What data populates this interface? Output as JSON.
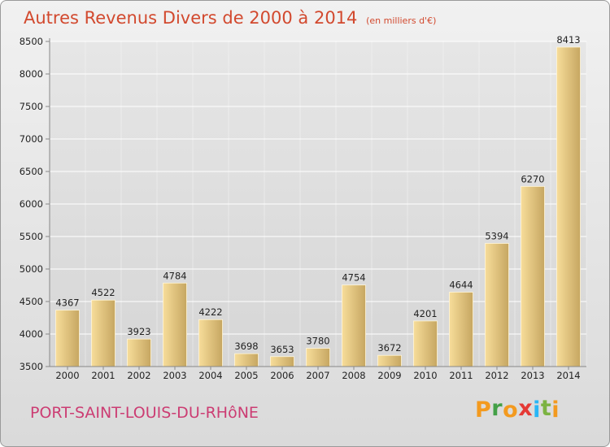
{
  "header": {
    "title": "Autres Revenus Divers de 2000 à 2014",
    "unit_note": "(en milliers d'€)"
  },
  "footer": {
    "place": "PORT-SAINT-LOUIS-DU-RHôNE",
    "logo_letters": [
      "P",
      "r",
      "o",
      "x",
      "i",
      "t",
      "i"
    ],
    "logo_colors": [
      "#f39a1f",
      "#43a047",
      "#f39a1f",
      "#e53935",
      "#29b6f6",
      "#7cb342",
      "#f39a1f"
    ]
  },
  "chart_data": {
    "type": "bar",
    "title": "Autres Revenus Divers de 2000 à 2014",
    "subtitle": "(en milliers d'€)",
    "categories": [
      "2000",
      "2001",
      "2002",
      "2003",
      "2004",
      "2005",
      "2006",
      "2007",
      "2008",
      "2009",
      "2010",
      "2011",
      "2012",
      "2013",
      "2014"
    ],
    "values": [
      4367,
      4522,
      3923,
      4784,
      4222,
      3698,
      3653,
      3780,
      4754,
      3672,
      4201,
      4644,
      5394,
      6270,
      8413
    ],
    "y_ticks": [
      3500,
      4000,
      4500,
      5000,
      5500,
      6000,
      6500,
      7000,
      7500,
      8000,
      8500
    ],
    "ylim": [
      3500,
      8500
    ],
    "grid": true,
    "legend": "none",
    "colors": {
      "bar_light": "#f7dd9a",
      "bar_dark": "#c6a661",
      "grid": "#ffffff",
      "axis": "#888888",
      "plot_bg_top": "#e6e6e6",
      "plot_bg_bottom": "#d6d6d6"
    }
  }
}
